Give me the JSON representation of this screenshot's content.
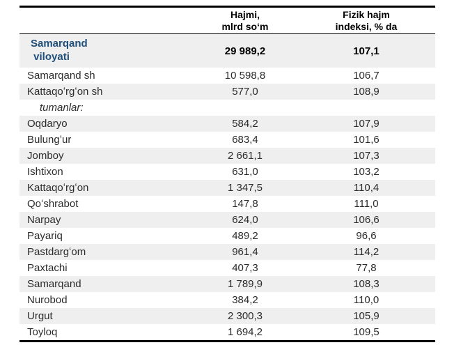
{
  "table": {
    "header": {
      "col1": "",
      "col2": "Hajmi,\nmlrd soʻm",
      "col3": "Fizik hajm\nindeksi, % da"
    },
    "rows": [
      {
        "name": "Samarqand\n viloyati",
        "hajmi": "29 989,2",
        "indeks": "107,1"
      },
      {
        "name": "Samarqand sh",
        "hajmi": "10 598,8",
        "indeks": "106,7"
      },
      {
        "name": "Kattaqoʻrgʻon sh",
        "hajmi": "577,0",
        "indeks": "108,9"
      },
      {
        "name": "tumanlar:",
        "hajmi": "",
        "indeks": ""
      },
      {
        "name": "Oqdaryo",
        "hajmi": "584,2",
        "indeks": "107,9"
      },
      {
        "name": "Bulungʻur",
        "hajmi": "683,4",
        "indeks": "101,6"
      },
      {
        "name": "Jomboy",
        "hajmi": "2 661,1",
        "indeks": "107,3"
      },
      {
        "name": "Ishtixon",
        "hajmi": "631,0",
        "indeks": "103,2"
      },
      {
        "name": "Kattaqoʻrgʻon",
        "hajmi": "1 347,5",
        "indeks": "110,4"
      },
      {
        "name": "Qoʻshrabot",
        "hajmi": "147,8",
        "indeks": "111,0"
      },
      {
        "name": "Narpay",
        "hajmi": "624,0",
        "indeks": "106,6"
      },
      {
        "name": "Payariq",
        "hajmi": "489,2",
        "indeks": "96,6"
      },
      {
        "name": "Pastdargʻom",
        "hajmi": "961,4",
        "indeks": "114,2"
      },
      {
        "name": "Paxtachi",
        "hajmi": "407,3",
        "indeks": "77,8"
      },
      {
        "name": "Samarqand",
        "hajmi": "1 789,9",
        "indeks": "108,3"
      },
      {
        "name": "Nurobod",
        "hajmi": "384,2",
        "indeks": "110,0"
      },
      {
        "name": "Urgut",
        "hajmi": "2 300,3",
        "indeks": "105,9"
      },
      {
        "name": "Toyloq",
        "hajmi": "1 694,2",
        "indeks": "109,5"
      }
    ],
    "colors": {
      "stripe": "#efefef",
      "region_text": "#1f4e79",
      "body_text": "#2b2b2b",
      "border": "#000000"
    }
  }
}
